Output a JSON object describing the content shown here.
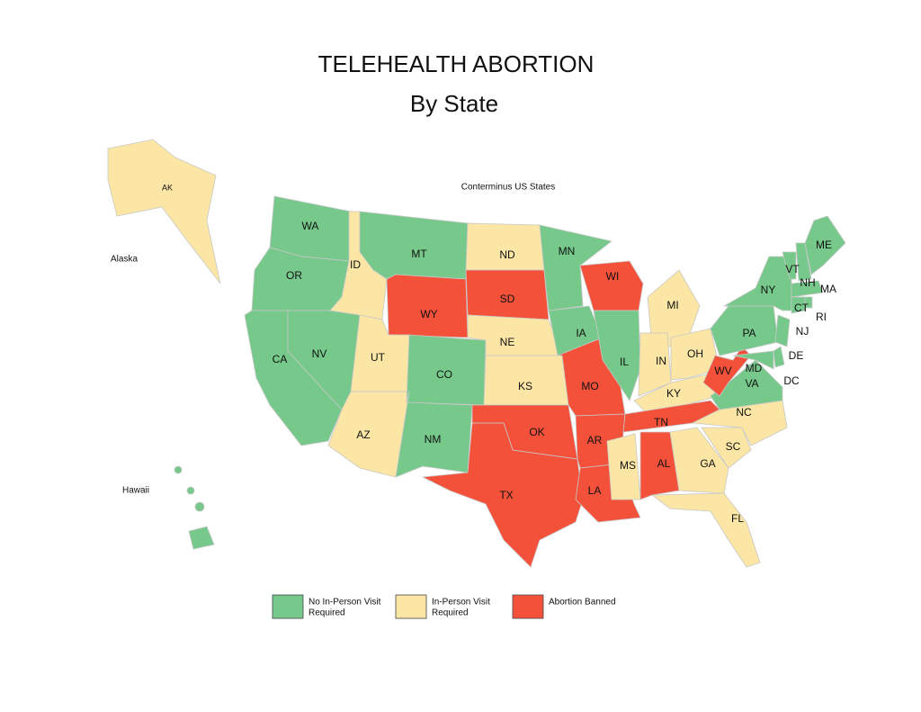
{
  "title": "TELEHEALTH ABORTION",
  "subtitle": "By State",
  "region_labels": [
    "Conterminus US States",
    "Alaska",
    "Hawaii"
  ],
  "legend": [
    {
      "lines": [
        "No In-Person Visit",
        "Required"
      ],
      "color": "#76c98a"
    },
    {
      "lines": [
        "In-Person Visit",
        "Required"
      ],
      "color": "#fbe6a6"
    },
    {
      "lines": [
        "Abortion Banned"
      ],
      "color": "#f4513a"
    }
  ],
  "states": [
    {
      "abbr": "WA",
      "category": 0
    },
    {
      "abbr": "OR",
      "category": 0
    },
    {
      "abbr": "CA",
      "category": 0
    },
    {
      "abbr": "NV",
      "category": 0
    },
    {
      "abbr": "ID",
      "category": 1
    },
    {
      "abbr": "MT",
      "category": 0
    },
    {
      "abbr": "WY",
      "category": 2
    },
    {
      "abbr": "UT",
      "category": 1
    },
    {
      "abbr": "AZ",
      "category": 1
    },
    {
      "abbr": "CO",
      "category": 0
    },
    {
      "abbr": "NM",
      "category": 0
    },
    {
      "abbr": "ND",
      "category": 1
    },
    {
      "abbr": "SD",
      "category": 2
    },
    {
      "abbr": "NE",
      "category": 1
    },
    {
      "abbr": "KS",
      "category": 1
    },
    {
      "abbr": "OK",
      "category": 2
    },
    {
      "abbr": "TX",
      "category": 2
    },
    {
      "abbr": "MN",
      "category": 0
    },
    {
      "abbr": "IA",
      "category": 0
    },
    {
      "abbr": "MO",
      "category": 2
    },
    {
      "abbr": "AR",
      "category": 2
    },
    {
      "abbr": "LA",
      "category": 2
    },
    {
      "abbr": "WI",
      "category": 2
    },
    {
      "abbr": "IL",
      "category": 0
    },
    {
      "abbr": "MI",
      "category": 1
    },
    {
      "abbr": "IN",
      "category": 1
    },
    {
      "abbr": "OH",
      "category": 1
    },
    {
      "abbr": "KY",
      "category": 1
    },
    {
      "abbr": "TN",
      "category": 2
    },
    {
      "abbr": "MS",
      "category": 1
    },
    {
      "abbr": "AL",
      "category": 2
    },
    {
      "abbr": "GA",
      "category": 1
    },
    {
      "abbr": "FL",
      "category": 1
    },
    {
      "abbr": "SC",
      "category": 1
    },
    {
      "abbr": "NC",
      "category": 1
    },
    {
      "abbr": "VA",
      "category": 0
    },
    {
      "abbr": "WV",
      "category": 2
    },
    {
      "abbr": "MD",
      "category": 0
    },
    {
      "abbr": "DE",
      "category": 0
    },
    {
      "abbr": "PA",
      "category": 0
    },
    {
      "abbr": "NY",
      "category": 0
    },
    {
      "abbr": "NJ",
      "category": 0
    },
    {
      "abbr": "VT",
      "category": 0
    },
    {
      "abbr": "NH",
      "category": 0
    },
    {
      "abbr": "MA",
      "category": 0
    },
    {
      "abbr": "CT",
      "category": 0
    },
    {
      "abbr": "RI",
      "category": 0
    },
    {
      "abbr": "ME",
      "category": 0
    },
    {
      "abbr": "DC",
      "category": 0
    },
    {
      "abbr": "AK",
      "category": 1
    },
    {
      "abbr": null,
      "category": 0
    }
  ]
}
